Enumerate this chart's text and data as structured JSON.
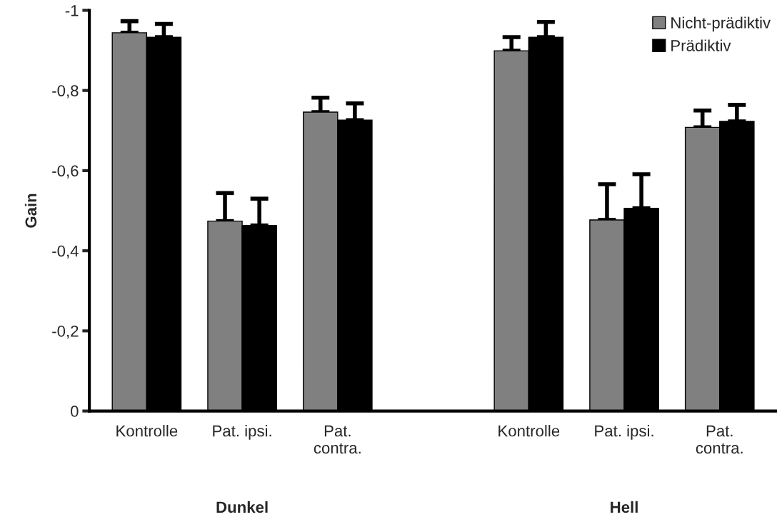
{
  "chart_data": {
    "type": "bar",
    "ylabel": "Gain",
    "categories": [
      "Kontrolle",
      "Pat. ipsi.",
      "Pat.\ncontra.",
      null,
      "Kontrolle",
      "Pat. ipsi.",
      "Pat.\ncontra."
    ],
    "series": [
      {
        "name": "Nicht-prädiktiv",
        "color": "#808080",
        "values": [
          -0.944,
          -0.474,
          -0.746,
          null,
          -0.899,
          -0.477,
          -0.708
        ],
        "errors": [
          [
            -0.973,
            -0.944
          ],
          [
            -0.544,
            -0.474
          ],
          [
            -0.782,
            -0.746
          ],
          null,
          [
            -0.933,
            -0.899
          ],
          [
            -0.566,
            -0.477
          ],
          [
            -0.75,
            -0.708
          ]
        ]
      },
      {
        "name": "Prädiktiv",
        "color": "#000000",
        "values": [
          -0.933,
          -0.463,
          -0.726,
          null,
          -0.933,
          -0.506,
          -0.723
        ],
        "errors": [
          [
            -0.966,
            -0.933
          ],
          [
            -0.53,
            -0.463
          ],
          [
            -0.768,
            -0.726
          ],
          null,
          [
            -0.971,
            -0.933
          ],
          [
            -0.591,
            -0.506
          ],
          [
            -0.764,
            -0.723
          ]
        ]
      }
    ],
    "annotations": [
      "Dunkel",
      "Hell"
    ],
    "ylim": [
      0,
      -1
    ],
    "yticks": [
      0,
      {
        "value": -0.2,
        "label": "-0,2"
      },
      {
        "value": -0.4,
        "label": "-0,4"
      },
      {
        "value": -0.6,
        "label": "-0,6"
      },
      {
        "value": -0.8,
        "label": "-0,8"
      },
      {
        "value": -1,
        "label": "-1"
      }
    ],
    "grid": false,
    "legend": "top right"
  }
}
